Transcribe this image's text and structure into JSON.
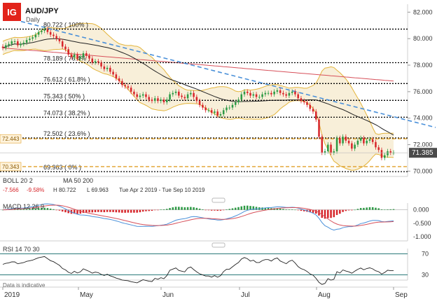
{
  "header": {
    "logo": "IG",
    "title": "AUD/JPY",
    "interval": "Daily",
    "footnote": "Data is indicative"
  },
  "colors": {
    "brand": "#e2231a",
    "up": "#2d9a45",
    "down": "#d7262b",
    "fib": "#000000",
    "trend": "#4a90d9",
    "sma20": "#222222",
    "ma200": "#d7505a",
    "boll": "#e3b43a",
    "level": "#e0a02a",
    "macd": "#4a90d9",
    "signal": "#d7505a",
    "rsi": "#222222",
    "rsiBand": "#2a7a7a"
  },
  "indicators": {
    "boll_label": "BOLL 20 2",
    "ma_label": "MA 50 200",
    "boll_stats": [
      "-7.566",
      "-9.58%",
      "H 80.722",
      "L 69.963",
      "Tue Apr 2 2019 - Tue Sep 10 2019"
    ],
    "macd_label": "MACD 12 26 9",
    "rsi_label": "RSI 14 70 30"
  },
  "chart_data": [
    {
      "type": "line",
      "name": "main",
      "x_ticks": [
        "2019",
        "May",
        "Jun",
        "Jul",
        "Aug",
        "Sep"
      ],
      "y_ticks": [
        "82.000",
        "80.000",
        "78.000",
        "76.000",
        "74.000",
        "72.000",
        "70.000"
      ],
      "ylim": [
        69.6,
        82.6
      ],
      "current_price": "71.385",
      "fib_levels": [
        {
          "label": "80.722 ( 100% )",
          "value": 80.722
        },
        {
          "label": "78.189 ( 76.4% )",
          "value": 78.189
        },
        {
          "label": "76.612 ( 61.8% )",
          "value": 76.612
        },
        {
          "label": "75.343 ( 50% )",
          "value": 75.343
        },
        {
          "label": "74.073 ( 38.2% )",
          "value": 74.073
        },
        {
          "label": "72.502 ( 23.6% )",
          "value": 72.502
        },
        {
          "label": "69.963 ( 0% )",
          "value": 69.963
        }
      ],
      "horizontal_levels": [
        {
          "label": "72.443",
          "value": 72.443
        },
        {
          "label": "70.343",
          "value": 70.343
        }
      ],
      "closes": [
        79.3,
        79.5,
        79.6,
        79.8,
        79.8,
        79.5,
        79.6,
        79.7,
        79.9,
        80.0,
        80.1,
        80.3,
        80.5,
        80.6,
        80.7,
        80.5,
        80.3,
        80.2,
        80.0,
        79.8,
        79.4,
        79.2,
        78.8,
        78.6,
        78.8,
        78.5,
        78.6,
        78.9,
        78.7,
        78.5,
        78.2,
        78.3,
        78.2,
        77.9,
        77.7,
        77.8,
        77.5,
        77.3,
        77.0,
        76.8,
        76.5,
        76.4,
        76.3,
        76.0,
        75.8,
        75.6,
        75.7,
        75.8,
        75.6,
        75.4,
        75.3,
        75.5,
        75.3,
        75.4,
        75.2,
        75.4,
        75.8,
        75.9,
        76.0,
        75.7,
        75.6,
        75.5,
        75.8,
        75.9,
        75.6,
        75.3,
        75.0,
        74.8,
        74.6,
        74.6,
        74.4,
        74.5,
        74.2,
        74.3,
        74.6,
        74.8,
        74.8,
        75.0,
        75.2,
        75.4,
        75.8,
        76.0,
        75.9,
        75.7,
        75.8,
        75.6,
        75.6,
        75.8,
        75.9,
        75.9,
        75.8,
        76.0,
        76.1,
        75.9,
        75.8,
        75.7,
        75.9,
        76.0,
        75.8,
        75.5,
        75.3,
        75.2,
        75.0,
        74.7,
        74.5,
        73.9,
        72.6,
        71.4,
        71.5,
        72.0,
        71.4,
        71.5,
        72.5,
        72.1,
        72.6,
        72.3,
        72.1,
        71.7,
        72.0,
        72.3,
        72.5,
        72.1,
        72.3,
        72.4,
        72.2,
        71.8,
        71.6,
        71.0,
        71.2,
        71.5,
        71.4,
        71.4
      ]
    },
    {
      "type": "bar",
      "name": "macd",
      "y_ticks": [
        "0.000",
        "-0.500",
        "-1.000"
      ],
      "ylim": [
        -1.15,
        0.25
      ]
    },
    {
      "type": "line",
      "name": "rsi",
      "y_ticks": [
        "70",
        "30"
      ],
      "ylim": [
        20,
        80
      ]
    }
  ]
}
